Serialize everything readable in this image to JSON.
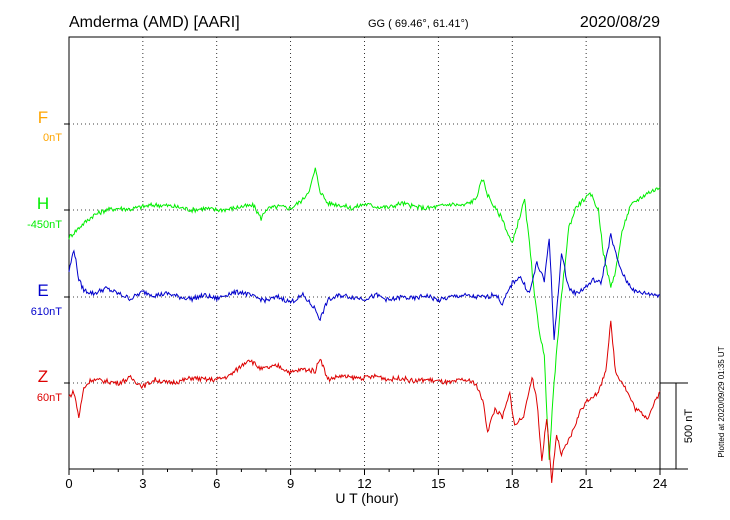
{
  "header": {
    "station": "Amderma (AMD)  [AARI]",
    "coords": "GG ( 69.46°,  61.41°)",
    "date": "2020/08/29"
  },
  "footer": {
    "plotted": "Plotted at 2020/09/29 01:35 UT"
  },
  "colors": {
    "F": "#ffa500",
    "H": "#00ee00",
    "E": "#0000cc",
    "Z": "#dd0000",
    "grid": "#000000"
  },
  "chart_data": {
    "type": "line",
    "title": "Amderma (AMD)  [AARI]",
    "xlabel": "U T (hour)",
    "xlim": [
      0,
      24
    ],
    "x_ticks": [
      "0",
      "3",
      "6",
      "9",
      "12",
      "15",
      "18",
      "21",
      "24"
    ],
    "scale_bar_label": "500 nT",
    "grid": true,
    "series": [
      {
        "name": "F",
        "baseline_label": "0nT",
        "color": "#ffa500",
        "x": [],
        "y": []
      },
      {
        "name": "H",
        "baseline_label": "-450nT",
        "color": "#00ee00",
        "x": [
          0,
          0.5,
          1,
          1.5,
          2,
          2.5,
          3,
          3.5,
          4,
          4.5,
          5,
          5.5,
          6,
          6.5,
          7,
          7.5,
          7.8,
          8,
          8.5,
          9,
          9.5,
          9.8,
          10,
          10.2,
          10.5,
          11,
          11.5,
          12,
          12.5,
          13,
          13.5,
          14,
          14.5,
          15,
          15.5,
          16,
          16.5,
          16.8,
          17,
          17.3,
          17.6,
          17.8,
          18,
          18.2,
          18.5,
          18.7,
          18.9,
          19.1,
          19.3,
          19.5,
          19.7,
          20,
          20.3,
          20.6,
          20.9,
          21.2,
          21.5,
          21.7,
          22,
          22.2,
          22.5,
          22.8,
          23,
          23.5,
          24
        ],
        "y": [
          -160,
          -90,
          -30,
          0,
          10,
          5,
          20,
          30,
          25,
          15,
          0,
          10,
          0,
          5,
          20,
          25,
          -50,
          5,
          20,
          10,
          60,
          130,
          240,
          110,
          40,
          30,
          10,
          35,
          20,
          15,
          40,
          20,
          10,
          20,
          35,
          25,
          60,
          180,
          90,
          10,
          -50,
          -130,
          -200,
          -90,
          60,
          -200,
          -500,
          -700,
          -850,
          -1450,
          -1000,
          -500,
          -100,
          20,
          60,
          90,
          0,
          -250,
          -450,
          -350,
          -100,
          20,
          50,
          100,
          130
        ]
      },
      {
        "name": "E",
        "baseline_label": "610nT",
        "color": "#0000cc",
        "x": [
          0,
          0.2,
          0.4,
          0.6,
          1,
          1.5,
          2,
          2.5,
          3,
          3.5,
          4,
          4.5,
          5,
          5.5,
          6,
          6.5,
          7,
          7.5,
          8,
          8.5,
          9,
          9.5,
          10,
          10.2,
          10.5,
          11,
          11.5,
          12,
          12.5,
          13,
          13.5,
          14,
          14.5,
          15,
          15.5,
          16,
          16.5,
          17,
          17.3,
          17.6,
          18,
          18.3,
          18.7,
          19,
          19.3,
          19.5,
          19.7,
          20,
          20.3,
          20.6,
          21,
          21.3,
          21.6,
          22,
          22.3,
          22.6,
          23,
          23.5,
          24
        ],
        "y": [
          150,
          280,
          100,
          40,
          20,
          50,
          20,
          -10,
          30,
          10,
          20,
          0,
          -10,
          10,
          -10,
          20,
          30,
          0,
          -20,
          0,
          -30,
          10,
          -70,
          -130,
          -20,
          10,
          0,
          -10,
          10,
          -20,
          0,
          -10,
          10,
          -20,
          0,
          10,
          0,
          0,
          20,
          -40,
          80,
          120,
          20,
          200,
          90,
          350,
          -250,
          250,
          50,
          20,
          60,
          100,
          80,
          360,
          200,
          100,
          30,
          20,
          10
        ]
      },
      {
        "name": "Z",
        "baseline_label": "60nT",
        "color": "#dd0000",
        "x": [
          0,
          0.2,
          0.4,
          0.6,
          0.9,
          1.5,
          2,
          2.5,
          3,
          3.5,
          4,
          4.5,
          5,
          5.5,
          6,
          6.5,
          7,
          7.3,
          7.8,
          8.5,
          9,
          9.5,
          10,
          10.2,
          10.5,
          11,
          11.5,
          12,
          12.5,
          13,
          13.5,
          14,
          14.5,
          15,
          15.5,
          16,
          16.5,
          16.8,
          17,
          17.3,
          17.6,
          17.9,
          18.1,
          18.5,
          18.8,
          19,
          19.2,
          19.4,
          19.6,
          19.8,
          20,
          20.4,
          20.8,
          21.2,
          21.5,
          21.8,
          22,
          22.2,
          22.5,
          23,
          23.5,
          24
        ],
        "y": [
          -80,
          -50,
          -200,
          -30,
          20,
          10,
          0,
          30,
          -20,
          20,
          0,
          10,
          30,
          20,
          20,
          40,
          100,
          140,
          80,
          100,
          60,
          80,
          70,
          150,
          20,
          40,
          30,
          30,
          40,
          20,
          30,
          10,
          20,
          10,
          0,
          20,
          0,
          -100,
          -280,
          -150,
          -200,
          -60,
          -250,
          -180,
          40,
          -100,
          -450,
          -200,
          -580,
          -300,
          -420,
          -300,
          -150,
          -80,
          -60,
          80,
          350,
          60,
          0,
          -150,
          -200,
          -50
        ]
      }
    ]
  }
}
